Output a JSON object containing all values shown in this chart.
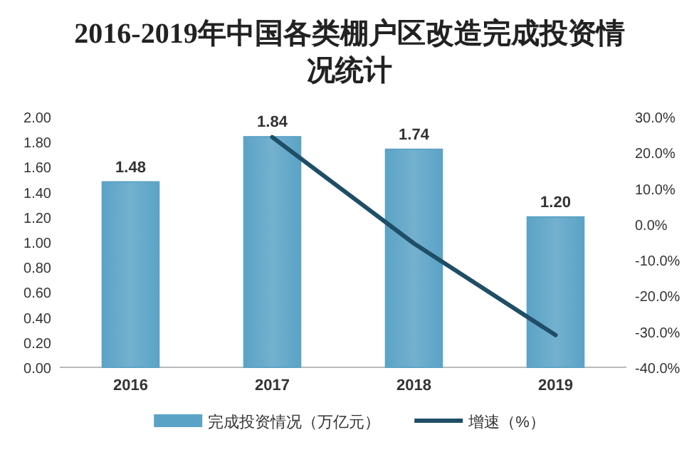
{
  "chart_data": {
    "type": "bar",
    "title": "2016-2019年中国各类棚户区改造完成投资情况统计",
    "categories": [
      "2016",
      "2017",
      "2018",
      "2019"
    ],
    "series": [
      {
        "name": "完成投资情况（万亿元）",
        "color": "#5ba3c6",
        "values": [
          1.48,
          1.84,
          1.74,
          1.2
        ],
        "value_labels": [
          "1.48",
          "1.84",
          "1.74",
          "1.20"
        ]
      },
      {
        "name": "增速（%）",
        "type": "line",
        "axis": "y2",
        "color": "#1f4e66",
        "values": [
          null,
          24.3,
          -5.4,
          -31.0
        ]
      }
    ],
    "ylim": [
      0,
      2
    ],
    "yticks": [
      {
        "value": 0,
        "label": "0.00"
      },
      {
        "value": 0.2,
        "label": "0.20"
      },
      {
        "value": 0.4,
        "label": "0.40"
      },
      {
        "value": 0.6,
        "label": "0.60"
      },
      {
        "value": 0.8,
        "label": "0.80"
      },
      {
        "value": 1,
        "label": "1.00"
      },
      {
        "value": 1.2,
        "label": "1.20"
      },
      {
        "value": 1.4,
        "label": "1.40"
      },
      {
        "value": 1.6,
        "label": "1.60"
      },
      {
        "value": 1.8,
        "label": "1.80"
      },
      {
        "value": 2,
        "label": "2.00"
      }
    ],
    "y2lim": [
      -40,
      30
    ],
    "y2ticks": [
      {
        "value": -40,
        "label": "-40.0%"
      },
      {
        "value": -30,
        "label": "-30.0%"
      },
      {
        "value": -20,
        "label": "-20.0%"
      },
      {
        "value": -10,
        "label": "-10.0%"
      },
      {
        "value": 0,
        "label": "0.0%"
      },
      {
        "value": 10,
        "label": "10.0%"
      },
      {
        "value": 20,
        "label": "20.0%"
      },
      {
        "value": 30,
        "label": "30.0%"
      }
    ],
    "legend": "bottom"
  }
}
